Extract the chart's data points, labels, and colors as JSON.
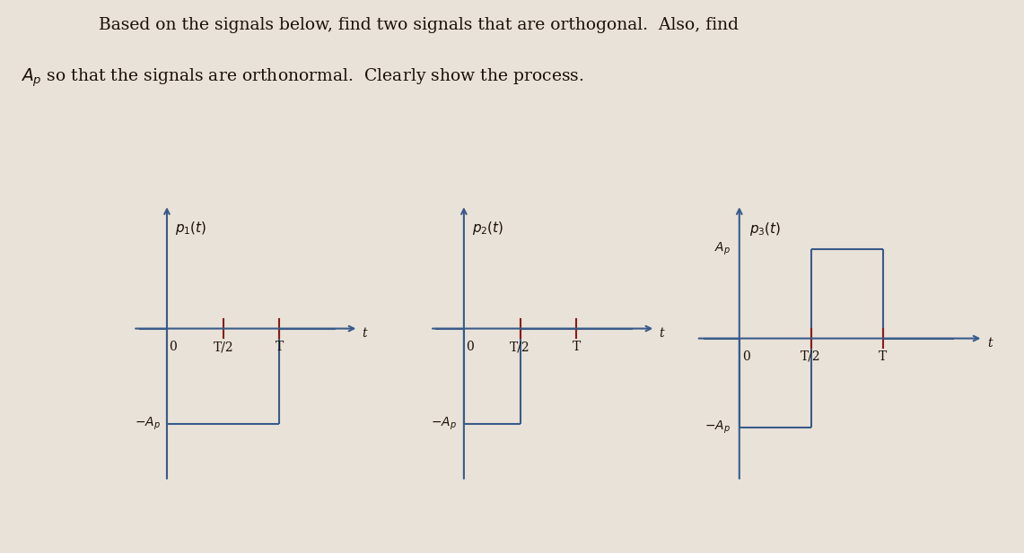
{
  "bg_color": "#e8e2d8",
  "text_color": "#1a1008",
  "line_color": "#3a5a8a",
  "axis_color": "#3a5a8a",
  "tick_color": "#8b1a1a",
  "title_line1": "     Based on the signals below, find two signals that are orthogonal.  Also, find",
  "title_line2": "$A_p$ so that the signals are orthonormal.  Clearly show the process.",
  "title_fontsize": 13.5,
  "signals": [
    {
      "label": "$p_1(t)$",
      "ylabel_neg": "$-A_p$",
      "has_ylabel_pos": false,
      "segments": [
        {
          "x": [
            0,
            0
          ],
          "y": [
            0,
            -1
          ]
        },
        {
          "x": [
            0,
            1
          ],
          "y": [
            -1,
            -1
          ]
        },
        {
          "x": [
            1,
            1
          ],
          "y": [
            -1,
            0
          ]
        }
      ],
      "zero_before": [
        -0.25,
        0
      ],
      "zero_after": [
        1,
        1.5
      ],
      "xticks": [
        0.5,
        1
      ],
      "xticklabels": [
        "T/2",
        "T"
      ],
      "xlabel": "t",
      "xlim": [
        -0.3,
        1.7
      ],
      "ylim": [
        -1.6,
        1.3
      ]
    },
    {
      "label": "$p_2(t)$",
      "ylabel_neg": "$-A_p$",
      "has_ylabel_pos": false,
      "segments": [
        {
          "x": [
            0,
            0
          ],
          "y": [
            0,
            -1
          ]
        },
        {
          "x": [
            0,
            0.5
          ],
          "y": [
            -1,
            -1
          ]
        },
        {
          "x": [
            0.5,
            0.5
          ],
          "y": [
            -1,
            0
          ]
        }
      ],
      "zero_before": [
        -0.25,
        0
      ],
      "zero_after": [
        0.5,
        1.5
      ],
      "xticks": [
        0.5,
        1
      ],
      "xticklabels": [
        "T/2",
        "T"
      ],
      "xlabel": "t",
      "xlim": [
        -0.3,
        1.7
      ],
      "ylim": [
        -1.6,
        1.3
      ]
    },
    {
      "label": "$p_3(t)$",
      "ylabel_neg": "$-A_p$",
      "ylabel_pos": "$A_p$",
      "has_ylabel_pos": true,
      "segments": [
        {
          "x": [
            0,
            0
          ],
          "y": [
            0,
            -1
          ]
        },
        {
          "x": [
            0,
            0.5
          ],
          "y": [
            -1,
            -1
          ]
        },
        {
          "x": [
            0.5,
            0.5
          ],
          "y": [
            -1,
            1
          ]
        },
        {
          "x": [
            0.5,
            1
          ],
          "y": [
            1,
            1
          ]
        },
        {
          "x": [
            1,
            1
          ],
          "y": [
            1,
            0
          ]
        }
      ],
      "zero_before": [
        -0.25,
        0
      ],
      "zero_after": [
        1,
        1.5
      ],
      "xticks": [
        0.5,
        1
      ],
      "xticklabels": [
        "T/2",
        "T"
      ],
      "xlabel": "t",
      "xlim": [
        -0.3,
        1.7
      ],
      "ylim": [
        -1.6,
        1.5
      ]
    }
  ]
}
